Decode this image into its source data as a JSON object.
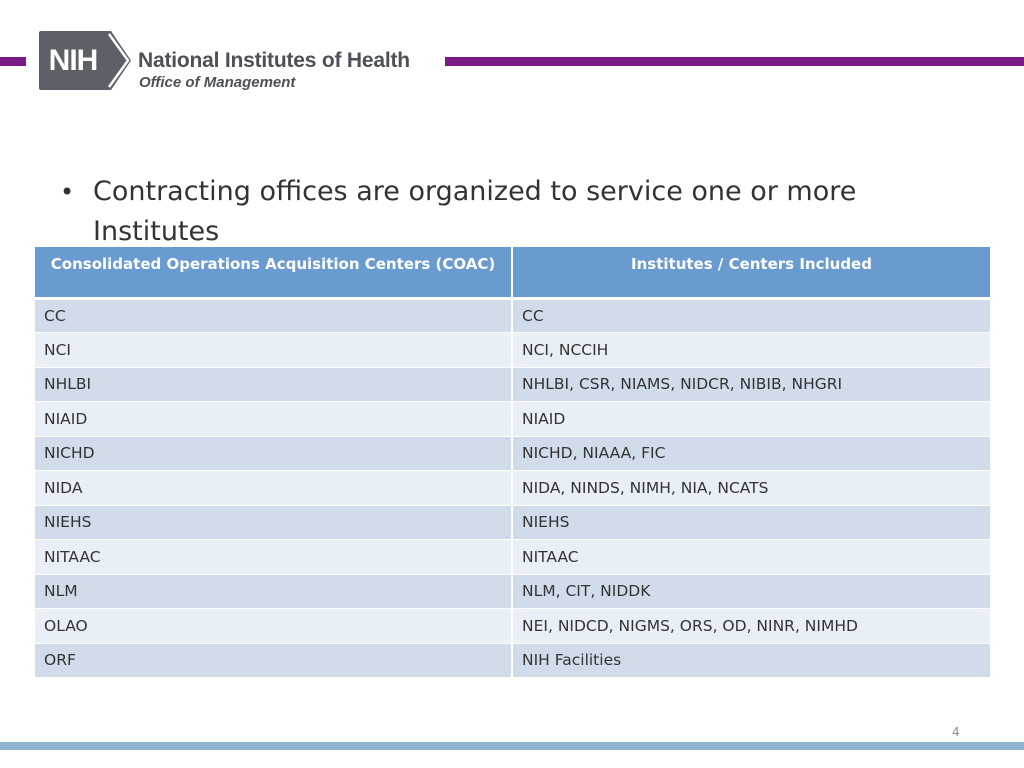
{
  "header": {
    "logo_text": "NIH",
    "org_name": "National Institutes of Health",
    "office": "Office of Management",
    "brand_color": "#7b1a84"
  },
  "bullet": {
    "text": "Contracting offices are organized to service one or more Institutes"
  },
  "table": {
    "columns": [
      "Consolidated Operations Acquisition Centers (COAC)",
      "Institutes / Centers  Included"
    ],
    "header_color": "#6a9bd0",
    "rows": [
      [
        "CC",
        "CC"
      ],
      [
        "NCI",
        "NCI, NCCIH"
      ],
      [
        "NHLBI",
        "NHLBI, CSR, NIAMS, NIDCR, NIBIB, NHGRI"
      ],
      [
        "NIAID",
        "NIAID"
      ],
      [
        "NICHD",
        "NICHD, NIAAA, FIC"
      ],
      [
        "NIDA",
        "NIDA, NINDS, NIMH, NIA, NCATS"
      ],
      [
        "NIEHS",
        "NIEHS"
      ],
      [
        "NITAAC",
        "NITAAC"
      ],
      [
        "NLM",
        "NLM, CIT, NIDDK"
      ],
      [
        "OLAO",
        "NEI, NIDCD, NIGMS, ORS, OD, NINR, NIMHD"
      ],
      [
        "ORF",
        "NIH Facilities"
      ]
    ]
  },
  "footer": {
    "page_number": "4"
  }
}
